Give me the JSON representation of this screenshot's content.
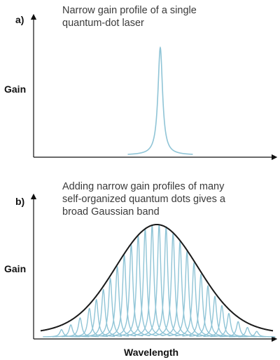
{
  "panels": {
    "a": {
      "label": "a)",
      "caption_lines": [
        "Narrow gain profile of a single",
        "quantum-dot laser"
      ],
      "y_label": "Gain"
    },
    "b": {
      "label": "b)",
      "caption_lines": [
        "Adding narrow gain profiles of many",
        "self-organized quantum dots gives a",
        "broad Gaussian band"
      ],
      "y_label": "Gain",
      "x_label": "Wavelength"
    }
  },
  "colors": {
    "axis": "#111111",
    "narrow_peak": "#8fc4d6",
    "envelope": "#1a1a1a",
    "caption": "#3a3a3a"
  },
  "chart_data": [
    {
      "type": "line",
      "panel": "a",
      "title": "Narrow gain profile of a single quantum-dot laser",
      "ylabel": "Gain",
      "xlabel": "",
      "x_range": [
        0,
        100
      ],
      "y_range": [
        0,
        1
      ],
      "series": [
        {
          "shape": "lorentzian",
          "center": 53,
          "width": 1.2,
          "amplitude": 0.87
        }
      ]
    },
    {
      "type": "line",
      "panel": "b",
      "title": "Adding narrow gain profiles of many self-organized quantum dots gives a broad Gaussian band",
      "ylabel": "Gain",
      "xlabel": "Wavelength",
      "x_range": [
        0,
        100
      ],
      "y_range": [
        0,
        1
      ],
      "envelope": {
        "shape": "gaussian",
        "center": 50,
        "sigma": 17.5,
        "amplitude": 1.0,
        "baseline": 0.06
      },
      "peaks": {
        "shape": "lorentzian",
        "width": 0.9,
        "centers": [
          9,
          13,
          17,
          21,
          24,
          27,
          30,
          33,
          36,
          39,
          42,
          45,
          48,
          51,
          54,
          57,
          60,
          63,
          66,
          69,
          72,
          75,
          78,
          81,
          85,
          89,
          93
        ]
      }
    }
  ]
}
